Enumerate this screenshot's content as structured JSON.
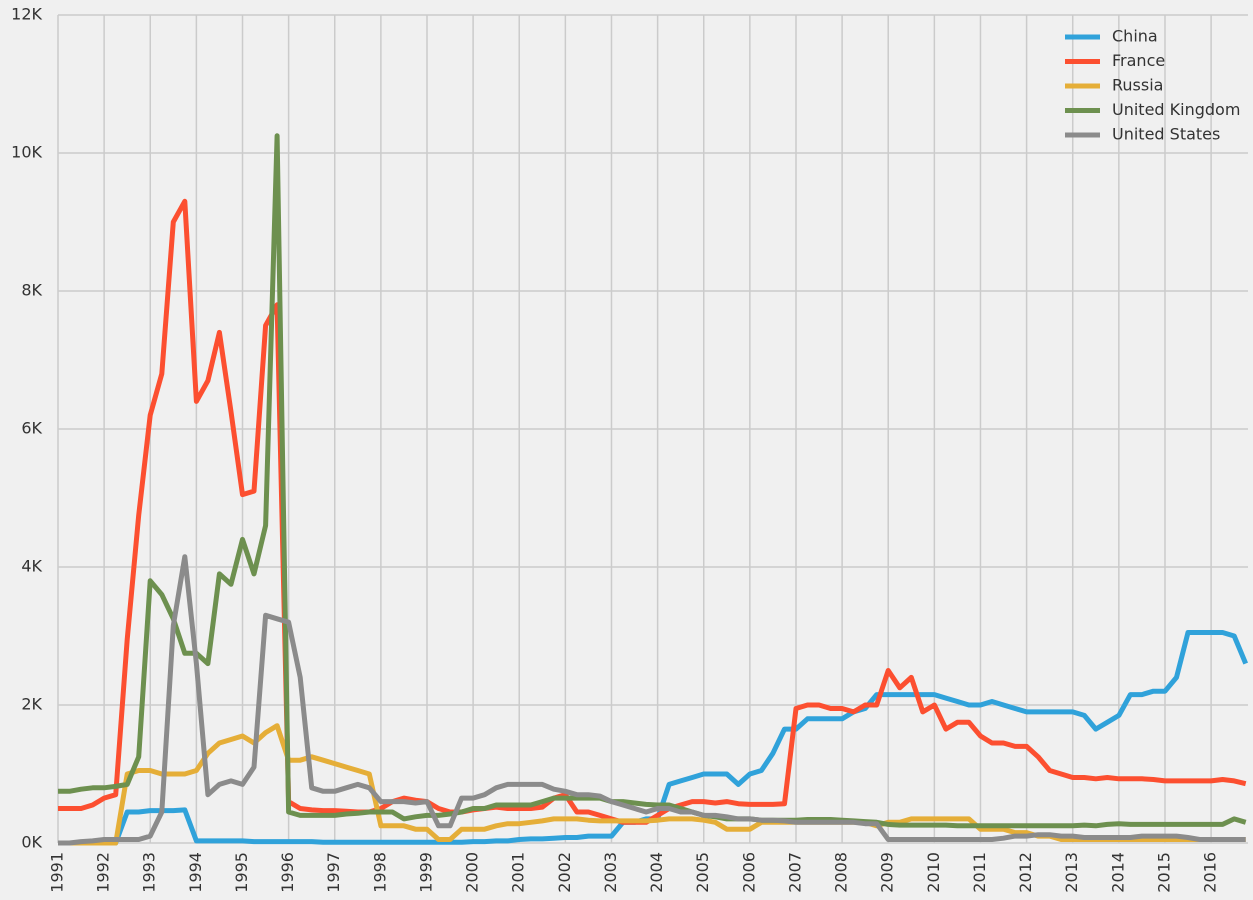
{
  "chart_data": {
    "type": "line",
    "x": [
      1991,
      1991.25,
      1991.5,
      1991.75,
      1992,
      1992.25,
      1992.5,
      1992.75,
      1993,
      1993.25,
      1993.5,
      1993.75,
      1994,
      1994.25,
      1994.5,
      1994.75,
      1995,
      1995.25,
      1995.5,
      1995.75,
      1996,
      1996.25,
      1996.5,
      1996.75,
      1997,
      1997.25,
      1997.5,
      1997.75,
      1998,
      1998.25,
      1998.5,
      1998.75,
      1999,
      1999.25,
      1999.5,
      1999.75,
      2000,
      2000.25,
      2000.5,
      2000.75,
      2001,
      2001.25,
      2001.5,
      2001.75,
      2002,
      2002.25,
      2002.5,
      2002.75,
      2003,
      2003.25,
      2003.5,
      2003.75,
      2004,
      2004.25,
      2004.5,
      2004.75,
      2005,
      2005.25,
      2005.5,
      2005.75,
      2006,
      2006.25,
      2006.5,
      2006.75,
      2007,
      2007.25,
      2007.5,
      2007.75,
      2008,
      2008.25,
      2008.5,
      2008.75,
      2009,
      2009.25,
      2009.5,
      2009.75,
      2010,
      2010.25,
      2010.5,
      2010.75,
      2011,
      2011.25,
      2011.5,
      2011.75,
      2012,
      2012.25,
      2012.5,
      2012.75,
      2013,
      2013.25,
      2013.5,
      2013.75,
      2014,
      2014.25,
      2014.5,
      2014.75,
      2015,
      2015.25,
      2015.5,
      2015.75,
      2016,
      2016.25,
      2016.5,
      2016.75
    ],
    "series": [
      {
        "name": "China",
        "color": "#30a2da",
        "values": [
          0,
          0,
          0,
          0,
          0,
          0,
          450,
          450,
          470,
          470,
          470,
          480,
          30,
          30,
          30,
          30,
          30,
          20,
          20,
          20,
          20,
          20,
          20,
          10,
          10,
          10,
          10,
          10,
          10,
          10,
          10,
          10,
          10,
          10,
          10,
          10,
          20,
          20,
          30,
          30,
          50,
          60,
          60,
          70,
          80,
          80,
          100,
          100,
          100,
          300,
          300,
          350,
          350,
          850,
          900,
          950,
          1000,
          1000,
          1000,
          850,
          1000,
          1050,
          1300,
          1650,
          1650,
          1800,
          1800,
          1800,
          1800,
          1900,
          1950,
          2150,
          2150,
          2150,
          2150,
          2150,
          2150,
          2100,
          2050,
          2000,
          2000,
          2050,
          2000,
          1950,
          1900,
          1900,
          1900,
          1900,
          1900,
          1850,
          1650,
          1750,
          1850,
          2150,
          2150,
          2200,
          2200,
          2400,
          3050,
          3050,
          3050,
          3050,
          3000,
          2600
        ]
      },
      {
        "name": "France",
        "color": "#fc4f30",
        "values": [
          500,
          500,
          500,
          550,
          650,
          700,
          2950,
          4750,
          6200,
          6800,
          9000,
          9300,
          6400,
          6700,
          7400,
          6250,
          5050,
          5100,
          7500,
          7800,
          600,
          500,
          480,
          470,
          470,
          460,
          450,
          450,
          500,
          600,
          650,
          620,
          600,
          500,
          450,
          450,
          480,
          500,
          520,
          500,
          500,
          500,
          520,
          650,
          700,
          450,
          450,
          400,
          350,
          300,
          300,
          300,
          400,
          500,
          550,
          600,
          600,
          580,
          600,
          570,
          560,
          560,
          560,
          570,
          1950,
          2000,
          2000,
          1950,
          1950,
          1900,
          2000,
          2000,
          2500,
          2250,
          2400,
          1900,
          2000,
          1650,
          1750,
          1750,
          1550,
          1450,
          1450,
          1400,
          1400,
          1250,
          1050,
          1000,
          950,
          950,
          930,
          950,
          930,
          930,
          930,
          920,
          900,
          900,
          900,
          900,
          900,
          920,
          900,
          860
        ]
      },
      {
        "name": "Russia",
        "color": "#e5ae38",
        "values": [
          0,
          0,
          0,
          0,
          0,
          0,
          1000,
          1050,
          1050,
          1000,
          1000,
          1000,
          1050,
          1300,
          1450,
          1500,
          1550,
          1450,
          1600,
          1700,
          1200,
          1200,
          1250,
          1200,
          1150,
          1100,
          1050,
          1000,
          250,
          250,
          250,
          200,
          200,
          50,
          50,
          200,
          200,
          200,
          250,
          280,
          280,
          300,
          320,
          350,
          350,
          350,
          330,
          320,
          320,
          320,
          320,
          320,
          330,
          350,
          350,
          350,
          330,
          300,
          200,
          200,
          200,
          300,
          300,
          300,
          300,
          300,
          300,
          300,
          300,
          300,
          300,
          250,
          300,
          300,
          350,
          350,
          350,
          350,
          350,
          350,
          200,
          200,
          200,
          150,
          150,
          100,
          100,
          50,
          50,
          50,
          50,
          50,
          50,
          50,
          50,
          50,
          50,
          50,
          50,
          50,
          50,
          50,
          50,
          50
        ]
      },
      {
        "name": "United Kingdom",
        "color": "#6d904f",
        "values": [
          750,
          750,
          780,
          800,
          800,
          820,
          850,
          1250,
          3800,
          3600,
          3250,
          2750,
          2750,
          2600,
          3900,
          3750,
          4400,
          3900,
          4600,
          10250,
          450,
          400,
          400,
          400,
          400,
          420,
          430,
          450,
          450,
          450,
          350,
          380,
          400,
          400,
          420,
          450,
          500,
          500,
          550,
          550,
          550,
          550,
          600,
          650,
          650,
          650,
          650,
          650,
          600,
          600,
          580,
          560,
          550,
          550,
          500,
          450,
          400,
          380,
          350,
          350,
          350,
          330,
          330,
          330,
          330,
          340,
          340,
          340,
          330,
          320,
          310,
          300,
          270,
          260,
          260,
          260,
          260,
          260,
          250,
          250,
          250,
          250,
          250,
          250,
          250,
          250,
          250,
          250,
          250,
          260,
          250,
          270,
          280,
          270,
          270,
          270,
          270,
          270,
          270,
          270,
          270,
          270,
          350,
          300
        ]
      },
      {
        "name": "United States",
        "color": "#8b8b8b",
        "values": [
          0,
          0,
          20,
          30,
          50,
          50,
          50,
          50,
          100,
          450,
          3150,
          4150,
          2600,
          700,
          850,
          900,
          850,
          1100,
          3300,
          3250,
          3200,
          2400,
          800,
          750,
          750,
          800,
          850,
          800,
          600,
          600,
          600,
          580,
          600,
          250,
          250,
          650,
          650,
          700,
          800,
          850,
          850,
          850,
          850,
          780,
          750,
          700,
          700,
          680,
          600,
          550,
          500,
          450,
          500,
          500,
          450,
          450,
          400,
          400,
          380,
          350,
          350,
          330,
          330,
          320,
          300,
          300,
          300,
          300,
          300,
          300,
          280,
          280,
          50,
          50,
          50,
          50,
          50,
          50,
          50,
          50,
          50,
          50,
          70,
          100,
          100,
          120,
          120,
          100,
          100,
          80,
          80,
          80,
          80,
          80,
          100,
          100,
          100,
          100,
          80,
          50,
          50,
          50,
          50,
          50
        ]
      }
    ],
    "xlim": [
      1991,
      2016.8
    ],
    "xticks": [
      1991,
      1992,
      1993,
      1994,
      1995,
      1996,
      1997,
      1998,
      1999,
      2000,
      2001,
      2002,
      2003,
      2004,
      2005,
      2006,
      2007,
      2008,
      2009,
      2010,
      2011,
      2012,
      2013,
      2014,
      2015,
      2016
    ],
    "ylim": [
      0,
      12000
    ],
    "yticks": [
      {
        "value": 0,
        "label": "0K"
      },
      {
        "value": 2000,
        "label": "2K"
      },
      {
        "value": 4000,
        "label": "4K"
      },
      {
        "value": 6000,
        "label": "6K"
      },
      {
        "value": 8000,
        "label": "8K"
      },
      {
        "value": 10000,
        "label": "10K"
      },
      {
        "value": 12000,
        "label": "12K"
      }
    ],
    "grid": true,
    "legend": "upper right"
  }
}
